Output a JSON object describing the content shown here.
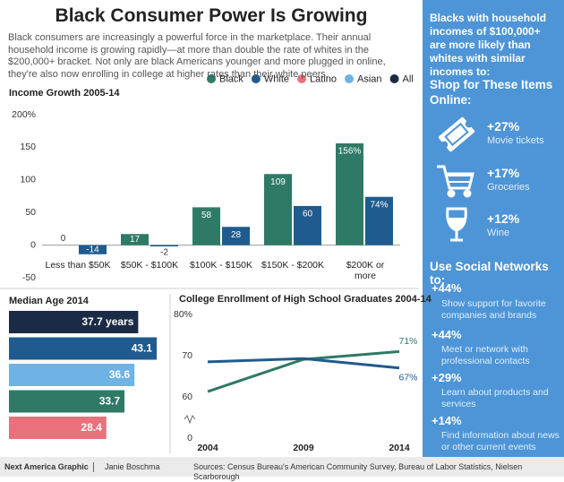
{
  "header": {
    "title": "Black Consumer Power Is Growing",
    "intro": "Black consumers are increasingly a powerful force in the marketplace. Their annual household income is growing rapidly—at more than double the rate of whites in the $200,000+ bracket. Not only are black Americans younger and more plugged in online, they're also now enrolling in college at higher rates than their white peers."
  },
  "chart_data": [
    {
      "type": "bar",
      "title": "Income Growth 2005-14",
      "categories": [
        "Less than $50K",
        "$50K - $100K",
        "$100K - $150K",
        "$150K - $200K",
        "$200K or more"
      ],
      "series": [
        {
          "name": "Black",
          "color": "#2f7a66",
          "values": [
            0,
            17,
            58,
            109,
            156
          ],
          "value_labels": [
            "0",
            "17",
            "58",
            "109",
            "156%"
          ]
        },
        {
          "name": "White",
          "color": "#1f5b8e",
          "values": [
            -14,
            -2,
            28,
            60,
            74
          ],
          "value_labels": [
            "-14",
            "-2",
            "28",
            "60",
            "74%"
          ]
        }
      ],
      "other_legend": [
        {
          "name": "Latino",
          "color": "#e8717c"
        },
        {
          "name": "Asian",
          "color": "#6eb3e6"
        },
        {
          "name": "All",
          "color": "#1b2b45"
        }
      ],
      "ylim": [
        -50,
        200
      ],
      "yticks": [
        -50,
        0,
        50,
        100,
        150,
        {
          "value": 200,
          "label": "200%"
        }
      ]
    },
    {
      "type": "hbar",
      "title": "Median Age 2014",
      "values": [
        37.7,
        43.1,
        36.6,
        33.7,
        28.4
      ],
      "value_labels": [
        "37.7 years",
        "43.1",
        "36.6",
        "33.7",
        "28.4"
      ],
      "colors": [
        "#1b2b45",
        "#1f5b8e",
        "#6eb3e6",
        "#2f7a66",
        "#e8717c"
      ]
    },
    {
      "type": "line",
      "title": "College Enrollment of High School Graduates 2004-14",
      "x": [
        2004,
        2009,
        2014
      ],
      "xlim": [
        2004,
        2014
      ],
      "xticks": [
        2004,
        2009,
        2014
      ],
      "ylim": [
        0,
        80
      ],
      "yticks": [
        0,
        60,
        70,
        {
          "value": 80,
          "label": "80%"
        }
      ],
      "axis_break": true,
      "series": [
        {
          "color": "#2f7a66",
          "values": [
            61.3,
            69.1,
            71
          ],
          "value_labels": [
            null,
            null,
            "71%"
          ]
        },
        {
          "color": "#1f5b8e",
          "values": [
            68.5,
            69.3,
            67
          ],
          "value_labels": [
            null,
            null,
            "67%"
          ]
        }
      ]
    }
  ],
  "sidebar": {
    "intro": "Blacks with household incomes of $100,000+ are more likely than whites with similar incomes to:",
    "shop": {
      "heading": "Shop for These Items Online:",
      "items": [
        {
          "value": "+27%",
          "label": "Movie tickets"
        },
        {
          "value": "+17%",
          "label": "Groceries"
        },
        {
          "value": "+12%",
          "label": "Wine"
        }
      ]
    },
    "social": {
      "heading": "Use Social Networks to:",
      "items": [
        {
          "value": "+44%",
          "label": "Show support for favorite companies and brands"
        },
        {
          "value": "+44%",
          "label": "Meet or network with professional contacts"
        },
        {
          "value": "+29%",
          "label": "Learn about products and services"
        },
        {
          "value": "+14%",
          "label": "Find information about news or other current events"
        }
      ]
    }
  },
  "footer": {
    "credit": "Next America Graphic",
    "author": "Janie Boschma",
    "sources": "Sources: Census Bureau's American Community Survey, Bureau of Labor Statistics, Nielsen Scarborough"
  }
}
